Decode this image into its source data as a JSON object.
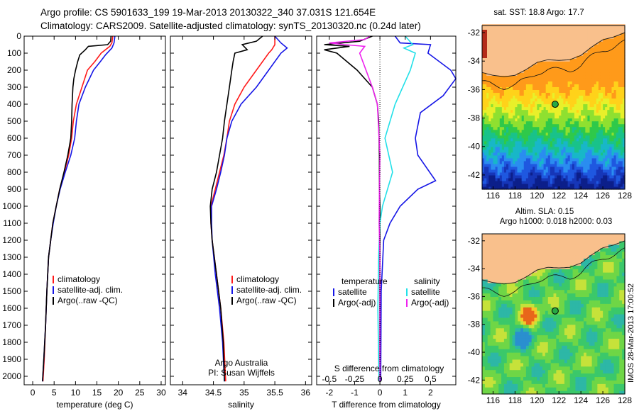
{
  "header": {
    "line1": "Argo profile: CS 5901633_199 19-Mar-2013 20130322_340 37.031S 121.654E",
    "line2": "Climatology: CARS2009. Satellite-adjusted climatology: synTS_20130320.nc (0.24d later)"
  },
  "side_label": "IMOS 28-Mar-2013 17:00:52",
  "colors": {
    "climatology": "#ff1a1a",
    "satellite": "#1515e6",
    "argo": "#000000",
    "cyan": "#22e0e8",
    "magenta": "#ee22ee",
    "land": "#f9c08c"
  },
  "chart_data": [
    {
      "type": "line",
      "xlabel": "temperature (deg C)",
      "xticks": [
        0,
        5,
        10,
        15,
        20,
        25,
        30
      ],
      "xlim": [
        -2,
        31
      ],
      "ylim": [
        0,
        2050
      ],
      "yticks": [
        0,
        100,
        200,
        300,
        400,
        500,
        600,
        700,
        800,
        900,
        1000,
        1100,
        1200,
        1300,
        1400,
        1500,
        1600,
        1700,
        1800,
        1900,
        2000
      ],
      "legend": [
        "climatology",
        "satellite-adj. clim.",
        "Argo(..raw -QC)"
      ],
      "series": [
        {
          "name": "climatology",
          "color": "#ff1a1a",
          "points": [
            [
              18.7,
              0
            ],
            [
              18.5,
              40
            ],
            [
              18,
              60
            ],
            [
              16,
              100
            ],
            [
              14.5,
              150
            ],
            [
              12.8,
              200
            ],
            [
              11.5,
              300
            ],
            [
              10.2,
              400
            ],
            [
              9.5,
              500
            ],
            [
              9.1,
              600
            ],
            [
              8.4,
              700
            ],
            [
              7.4,
              800
            ],
            [
              6.3,
              900
            ],
            [
              5.5,
              1000
            ],
            [
              4.7,
              1100
            ],
            [
              4.2,
              1200
            ],
            [
              3.7,
              1300
            ],
            [
              3.3,
              1500
            ],
            [
              3,
              1700
            ],
            [
              2.7,
              1900
            ],
            [
              2.4,
              2030
            ]
          ]
        },
        {
          "name": "satellite-adj. clim.",
          "color": "#1515e6",
          "points": [
            [
              19.2,
              0
            ],
            [
              19,
              40
            ],
            [
              18.5,
              70
            ],
            [
              17,
              110
            ],
            [
              15.8,
              150
            ],
            [
              14.2,
              200
            ],
            [
              12.3,
              300
            ],
            [
              10.8,
              400
            ],
            [
              10.2,
              500
            ],
            [
              9.8,
              600
            ],
            [
              8.9,
              700
            ],
            [
              7.6,
              800
            ],
            [
              6.4,
              900
            ],
            [
              5.5,
              1000
            ],
            [
              4.8,
              1100
            ],
            [
              4.2,
              1200
            ],
            [
              3.7,
              1300
            ],
            [
              3.3,
              1500
            ],
            [
              3,
              1700
            ],
            [
              2.6,
              1900
            ],
            [
              2.3,
              2030
            ]
          ]
        },
        {
          "name": "Argo(..raw -QC)",
          "color": "#000000",
          "points": [
            [
              18.3,
              0
            ],
            [
              18.2,
              30
            ],
            [
              17.5,
              50
            ],
            [
              13,
              60
            ],
            [
              12.3,
              80
            ],
            [
              11,
              110
            ],
            [
              10.5,
              150
            ],
            [
              10,
              200
            ],
            [
              9.6,
              250
            ],
            [
              9.4,
              300
            ],
            [
              9.2,
              400
            ],
            [
              9.1,
              500
            ],
            [
              8.9,
              600
            ],
            [
              8.2,
              700
            ],
            [
              7.3,
              800
            ],
            [
              6.3,
              900
            ],
            [
              5.5,
              1000
            ],
            [
              4.7,
              1100
            ],
            [
              4.2,
              1200
            ],
            [
              3.7,
              1300
            ],
            [
              3.3,
              1500
            ],
            [
              3,
              1700
            ],
            [
              2.6,
              1900
            ],
            [
              2.3,
              2030
            ]
          ]
        }
      ]
    },
    {
      "type": "line",
      "xlabel": "salinity",
      "xticks": [
        34,
        34.5,
        35,
        35.5,
        36
      ],
      "xlim": [
        33.8,
        36.1
      ],
      "ylim": [
        0,
        2050
      ],
      "legend": [
        "climatology",
        "satellite-adj. clim.",
        "Argo(..raw -QC)"
      ],
      "annotations": [
        "Argo Australia",
        "PI: Susan Wijffels"
      ],
      "series": [
        {
          "name": "climatology",
          "color": "#ff1a1a",
          "points": [
            [
              35.5,
              0
            ],
            [
              35.5,
              50
            ],
            [
              35.45,
              80
            ],
            [
              35.4,
              100
            ],
            [
              35.2,
              200
            ],
            [
              35,
              300
            ],
            [
              34.85,
              400
            ],
            [
              34.76,
              500
            ],
            [
              34.72,
              600
            ],
            [
              34.67,
              700
            ],
            [
              34.6,
              800
            ],
            [
              34.53,
              900
            ],
            [
              34.46,
              1000
            ],
            [
              34.46,
              1100
            ],
            [
              34.48,
              1200
            ],
            [
              34.55,
              1400
            ],
            [
              34.62,
              1600
            ],
            [
              34.67,
              1800
            ],
            [
              34.7,
              2030
            ]
          ]
        },
        {
          "name": "satellite-adj. clim.",
          "color": "#1515e6",
          "points": [
            [
              35.5,
              0
            ],
            [
              35.6,
              40
            ],
            [
              35.7,
              70
            ],
            [
              35.6,
              100
            ],
            [
              35.4,
              200
            ],
            [
              35.2,
              300
            ],
            [
              34.95,
              400
            ],
            [
              34.8,
              500
            ],
            [
              34.72,
              600
            ],
            [
              34.68,
              700
            ],
            [
              34.62,
              800
            ],
            [
              34.55,
              900
            ],
            [
              34.47,
              1000
            ],
            [
              34.47,
              1100
            ],
            [
              34.48,
              1200
            ],
            [
              34.53,
              1400
            ],
            [
              34.6,
              1600
            ],
            [
              34.65,
              1800
            ],
            [
              34.68,
              2030
            ]
          ]
        },
        {
          "name": "Argo(..raw -QC)",
          "color": "#000000",
          "points": [
            [
              35.3,
              0
            ],
            [
              35.2,
              30
            ],
            [
              34.97,
              50
            ],
            [
              35.05,
              80
            ],
            [
              34.85,
              100
            ],
            [
              34.82,
              150
            ],
            [
              34.8,
              200
            ],
            [
              34.76,
              300
            ],
            [
              34.72,
              400
            ],
            [
              34.68,
              500
            ],
            [
              34.65,
              600
            ],
            [
              34.6,
              700
            ],
            [
              34.55,
              800
            ],
            [
              34.48,
              900
            ],
            [
              34.45,
              1000
            ],
            [
              34.46,
              1100
            ],
            [
              34.48,
              1200
            ],
            [
              34.55,
              1400
            ],
            [
              34.62,
              1600
            ],
            [
              34.66,
              1800
            ],
            [
              34.68,
              2030
            ]
          ]
        }
      ]
    },
    {
      "type": "line",
      "xlabel": "T difference from climatology",
      "xlabel_top": "S difference from climatology",
      "xticks": [
        -2,
        -1,
        0,
        1,
        2
      ],
      "xticks_top": [
        "-0.5",
        "-0.25",
        "0",
        "0.25",
        "0.5"
      ],
      "xlim": [
        -2.5,
        3
      ],
      "ylim": [
        0,
        2050
      ],
      "legend_left_title": "temperature",
      "legend_right_title": "salinity",
      "legend": [
        "satellite",
        "Argo(-adj)",
        "satellite",
        "Argo(-adj)"
      ],
      "series": [
        {
          "name": "satellite",
          "color": "#1515e6",
          "points": [
            [
              0.6,
              0
            ],
            [
              0.8,
              40
            ],
            [
              2.0,
              50
            ],
            [
              1.9,
              100
            ],
            [
              2.8,
              200
            ],
            [
              3.0,
              250
            ],
            [
              2.5,
              350
            ],
            [
              1.6,
              450
            ],
            [
              1.4,
              600
            ],
            [
              1.5,
              700
            ],
            [
              2.2,
              850
            ],
            [
              1.5,
              900
            ],
            [
              0.8,
              1000
            ],
            [
              0.4,
              1100
            ],
            [
              0.15,
              1200
            ],
            [
              0.05,
              1500
            ],
            [
              0.03,
              2030
            ]
          ]
        },
        {
          "name": "Argo(-adj)",
          "color": "#000000",
          "points": [
            [
              -0.3,
              0
            ],
            [
              -0.8,
              30
            ],
            [
              -2.2,
              50
            ],
            [
              -1.2,
              60
            ],
            [
              -2.2,
              80
            ],
            [
              -1.7,
              100
            ],
            [
              -0.9,
              200
            ],
            [
              -0.3,
              300
            ],
            [
              -0.1,
              400
            ],
            [
              -0.05,
              500
            ],
            [
              -0.02,
              700
            ],
            [
              -0.02,
              900
            ],
            [
              0,
              1000
            ],
            [
              0,
              1200
            ],
            [
              0,
              1500
            ],
            [
              0,
              1800
            ],
            [
              0,
              2030
            ]
          ]
        },
        {
          "name": "satellite",
          "color": "#22e0e8",
          "points": [
            [
              1.0,
              0
            ],
            [
              1.3,
              50
            ],
            [
              0.95,
              70
            ],
            [
              1.4,
              100
            ],
            [
              1.2,
              200
            ],
            [
              0.6,
              400
            ],
            [
              0.2,
              600
            ],
            [
              0.5,
              800
            ],
            [
              0.1,
              1000
            ],
            [
              0,
              1100
            ],
            [
              -0.05,
              1300
            ],
            [
              -0.08,
              1600
            ],
            [
              -0.05,
              1900
            ],
            [
              -0.03,
              2030
            ]
          ]
        },
        {
          "name": "Argo(-adj)",
          "color": "#ee22ee",
          "points": [
            [
              -0.4,
              0
            ],
            [
              -0.6,
              20
            ],
            [
              -2.0,
              40
            ],
            [
              -1.4,
              50
            ],
            [
              -0.6,
              60
            ],
            [
              -0.8,
              100
            ],
            [
              -0.3,
              300
            ],
            [
              -0.1,
              400
            ],
            [
              0,
              700
            ],
            [
              -0.02,
              900
            ],
            [
              -0.03,
              1100
            ],
            [
              0,
              1300
            ],
            [
              0,
              2030
            ]
          ]
        }
      ]
    },
    {
      "type": "heatmap",
      "title": "sat. SST: 18.8  Argo: 17.7",
      "xticks": [
        116,
        118,
        120,
        122,
        124,
        126,
        128
      ],
      "yticks": [
        -32,
        -34,
        -36,
        -38,
        -40,
        -42
      ],
      "xlim": [
        115,
        128
      ],
      "ylim": [
        -43,
        -31.5
      ],
      "marker": [
        121.654,
        -37.031
      ]
    },
    {
      "type": "heatmap",
      "title": "Altim. SLA: 0.15",
      "subtitle": "Argo h1000: 0.018 h2000: 0.03",
      "xticks": [
        116,
        118,
        120,
        122,
        124,
        126,
        128
      ],
      "yticks": [
        -32,
        -34,
        -36,
        -38,
        -40,
        -42
      ],
      "xlim": [
        115,
        128
      ],
      "ylim": [
        -43,
        -31.5
      ],
      "marker": [
        121.654,
        -37.031
      ]
    }
  ]
}
